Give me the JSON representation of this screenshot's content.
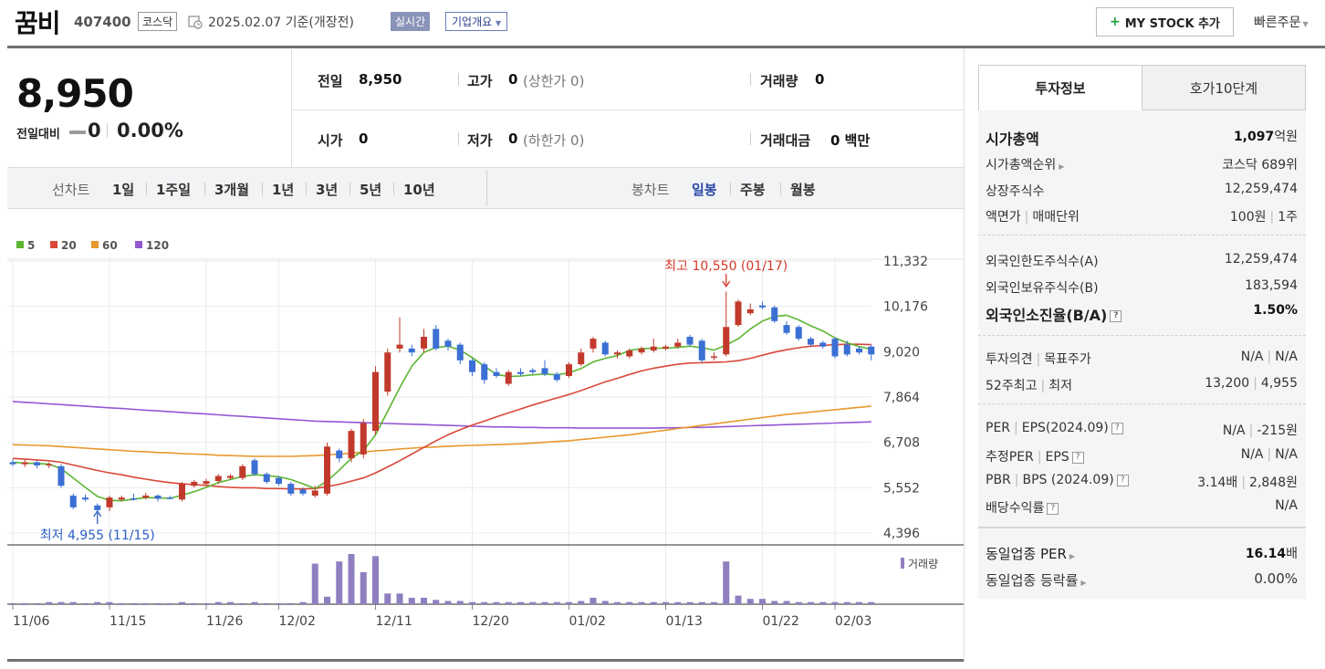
{
  "header": {
    "name": "꿈비",
    "code": "407400",
    "market": "코스닥",
    "date": "2025.02.07 기준(개장전)",
    "realtime": "실시간",
    "company_overview": "기업개요",
    "mystock_label": "MY STOCK 추가",
    "quick_order": "빠른주문"
  },
  "price": {
    "current": "8,950",
    "change_label": "전일대비",
    "change": "0",
    "change_rate": "0.00%"
  },
  "stats": {
    "prev_label": "전일",
    "prev_value": "8,950",
    "high_label": "고가",
    "high_value": "0",
    "upper_limit": "(상한가 0)",
    "volume_label": "거래량",
    "volume_value": "0",
    "open_label": "시가",
    "open_value": "0",
    "low_label": "저가",
    "low_value": "0",
    "lower_limit": "(하한가 0)",
    "amount_label": "거래대금",
    "amount_value": "0 백만"
  },
  "periods": {
    "line_label": "선차트",
    "line_items": [
      "1일",
      "1주일",
      "3개월",
      "1년",
      "3년",
      "5년",
      "10년"
    ],
    "candle_label": "봉차트",
    "candle_items": [
      "일봉",
      "주봉",
      "월봉"
    ],
    "active_candle": "일봉"
  },
  "chart_data": {
    "type": "candlestick",
    "legend": [
      "5",
      "20",
      "60",
      "120"
    ],
    "legend_colors": [
      "#5cb531",
      "#d9483b",
      "#e8972d",
      "#9457d3"
    ],
    "up_color": "#c1392b",
    "down_color": "#3b6fd4",
    "y_ticks": [
      "11,332",
      "10,176",
      "9,020",
      "7,864",
      "6,708",
      "5,552",
      "4,396"
    ],
    "ylim": [
      4396,
      11332
    ],
    "x_labels": [
      "11/06",
      "11/15",
      "11/26",
      "12/02",
      "12/11",
      "12/20",
      "01/02",
      "01/13",
      "01/22",
      "02/03"
    ],
    "high_annotation": "최고 10,550 (01/17)",
    "low_annotation": "최저 4,955 (11/15)",
    "volume_label": "거래량",
    "volume_color": "#8f7fc0",
    "candles": [
      [
        6200,
        6150,
        6280,
        6100
      ],
      [
        6150,
        6200,
        6260,
        6080
      ],
      [
        6200,
        6120,
        6250,
        6050
      ],
      [
        6120,
        6150,
        6200,
        6050
      ],
      [
        6100,
        5600,
        6150,
        5550
      ],
      [
        5350,
        5050,
        5400,
        5000
      ],
      [
        5300,
        5250,
        5380,
        5200
      ],
      [
        5100,
        4980,
        5150,
        4955
      ],
      [
        5050,
        5300,
        5350,
        4955
      ],
      [
        5250,
        5300,
        5350,
        5200
      ],
      [
        5280,
        5250,
        5400,
        5220
      ],
      [
        5300,
        5350,
        5420,
        5250
      ],
      [
        5350,
        5270,
        5380,
        5200
      ],
      [
        5300,
        5280,
        5350,
        5250
      ],
      [
        5250,
        5650,
        5700,
        5200
      ],
      [
        5600,
        5700,
        5750,
        5550
      ],
      [
        5650,
        5720,
        5780,
        5600
      ],
      [
        5720,
        5850,
        5900,
        5650
      ],
      [
        5800,
        5850,
        5900,
        5750
      ],
      [
        5800,
        6100,
        6150,
        5750
      ],
      [
        6250,
        5900,
        6300,
        5850
      ],
      [
        5900,
        5700,
        5950,
        5650
      ],
      [
        5800,
        5650,
        5850,
        5600
      ],
      [
        5650,
        5400,
        5700,
        5350
      ],
      [
        5500,
        5400,
        5550,
        5350
      ],
      [
        5350,
        5480,
        5600,
        5300
      ],
      [
        5400,
        6600,
        6700,
        5350
      ],
      [
        6500,
        6300,
        6550,
        6200
      ],
      [
        6300,
        7000,
        7050,
        6200
      ],
      [
        6400,
        7200,
        7300,
        6300
      ],
      [
        7000,
        8500,
        8650,
        6900
      ],
      [
        8000,
        9000,
        9100,
        7900
      ],
      [
        9100,
        9200,
        9900,
        9000
      ],
      [
        9100,
        9000,
        9200,
        8900
      ],
      [
        9100,
        9400,
        9600,
        9000
      ],
      [
        9600,
        9100,
        9700,
        9050
      ],
      [
        9300,
        9150,
        9350,
        9050
      ],
      [
        9200,
        8800,
        9250,
        8700
      ],
      [
        8800,
        8500,
        8850,
        8400
      ],
      [
        8700,
        8300,
        8750,
        8200
      ],
      [
        8500,
        8400,
        8600,
        8350
      ],
      [
        8200,
        8500,
        8550,
        8150
      ],
      [
        8500,
        8450,
        8600,
        8400
      ],
      [
        8550,
        8500,
        8600,
        8450
      ],
      [
        8600,
        8450,
        8800,
        8400
      ],
      [
        8450,
        8300,
        8500,
        8250
      ],
      [
        8400,
        8700,
        8750,
        8350
      ],
      [
        8700,
        9000,
        9100,
        8650
      ],
      [
        9100,
        9350,
        9400,
        9000
      ],
      [
        9250,
        8950,
        9300,
        8900
      ],
      [
        8950,
        9000,
        9050,
        8850
      ],
      [
        8900,
        9050,
        9100,
        8850
      ],
      [
        9000,
        9100,
        9150,
        8950
      ],
      [
        9050,
        9150,
        9350,
        9000
      ],
      [
        9100,
        9150,
        9200,
        9050
      ],
      [
        9150,
        9250,
        9350,
        9100
      ],
      [
        9400,
        9200,
        9450,
        9150
      ],
      [
        9300,
        8800,
        9350,
        8750
      ],
      [
        8900,
        8900,
        9000,
        8800
      ],
      [
        8950,
        9650,
        10550,
        8900
      ],
      [
        9700,
        10300,
        10350,
        9650
      ],
      [
        10000,
        10100,
        10250,
        9950
      ],
      [
        10200,
        10150,
        10300,
        10100
      ],
      [
        10150,
        9800,
        10200,
        9750
      ],
      [
        9700,
        9500,
        9800,
        9450
      ],
      [
        9650,
        9350,
        9700,
        9300
      ],
      [
        9350,
        9200,
        9400,
        9150
      ],
      [
        9250,
        9150,
        9300,
        9100
      ],
      [
        9350,
        8900,
        9400,
        8850
      ],
      [
        9200,
        8950,
        9300,
        8900
      ],
      [
        9100,
        9000,
        9150,
        8950
      ],
      [
        9150,
        8950,
        9200,
        8800
      ]
    ],
    "volume": [
      1,
      1,
      1,
      2,
      2,
      2,
      1,
      2,
      2,
      1,
      1,
      1,
      1,
      1,
      2,
      1,
      1,
      2,
      2,
      1,
      2,
      1,
      1,
      1,
      2,
      38,
      7,
      40,
      47,
      30,
      45,
      10,
      10,
      6,
      6,
      4,
      3,
      3,
      2,
      2,
      2,
      2,
      2,
      2,
      2,
      2,
      2,
      3,
      6,
      3,
      2,
      2,
      2,
      2,
      2,
      2,
      2,
      2,
      2,
      40,
      8,
      5,
      5,
      3,
      3,
      2,
      2,
      2,
      2,
      2,
      2,
      2
    ],
    "ma5": [
      6200,
      6180,
      6170,
      6150,
      6040,
      5800,
      5560,
      5330,
      5230,
      5220,
      5260,
      5300,
      5290,
      5280,
      5360,
      5450,
      5560,
      5680,
      5760,
      5840,
      5880,
      5860,
      5830,
      5760,
      5650,
      5530,
      5720,
      6000,
      6300,
      6500,
      6900,
      7500,
      8100,
      8650,
      9000,
      9130,
      9160,
      9060,
      8870,
      8650,
      8440,
      8390,
      8400,
      8430,
      8450,
      8430,
      8480,
      8590,
      8760,
      8850,
      8920,
      9050,
      9100,
      9110,
      9110,
      9130,
      9160,
      9120,
      9060,
      9190,
      9350,
      9600,
      9800,
      9920,
      9950,
      9830,
      9680,
      9550,
      9370,
      9250,
      9150,
      9080
    ],
    "ma20": [
      6300,
      6280,
      6260,
      6240,
      6200,
      6130,
      6060,
      5990,
      5930,
      5880,
      5820,
      5770,
      5720,
      5680,
      5650,
      5630,
      5610,
      5580,
      5560,
      5550,
      5550,
      5530,
      5530,
      5520,
      5520,
      5530,
      5580,
      5640,
      5720,
      5800,
      5930,
      6080,
      6240,
      6410,
      6580,
      6750,
      6900,
      7030,
      7150,
      7250,
      7360,
      7460,
      7560,
      7660,
      7750,
      7840,
      7930,
      8030,
      8140,
      8250,
      8340,
      8440,
      8530,
      8600,
      8650,
      8700,
      8730,
      8740,
      8750,
      8760,
      8790,
      8850,
      8930,
      9010,
      9070,
      9120,
      9160,
      9180,
      9200,
      9210,
      9210,
      9200
    ],
    "ma60": [
      6650,
      6640,
      6630,
      6620,
      6600,
      6580,
      6560,
      6540,
      6520,
      6500,
      6480,
      6470,
      6450,
      6440,
      6420,
      6410,
      6400,
      6380,
      6370,
      6360,
      6350,
      6350,
      6350,
      6350,
      6360,
      6370,
      6390,
      6410,
      6430,
      6460,
      6490,
      6510,
      6540,
      6560,
      6580,
      6590,
      6610,
      6620,
      6630,
      6640,
      6650,
      6660,
      6670,
      6690,
      6710,
      6730,
      6750,
      6780,
      6810,
      6840,
      6870,
      6900,
      6940,
      6980,
      7020,
      7060,
      7100,
      7140,
      7180,
      7220,
      7260,
      7300,
      7340,
      7380,
      7420,
      7450,
      7480,
      7510,
      7540,
      7570,
      7600,
      7630
    ],
    "ma120": [
      7750,
      7730,
      7710,
      7690,
      7670,
      7650,
      7630,
      7610,
      7590,
      7570,
      7550,
      7530,
      7510,
      7490,
      7470,
      7450,
      7430,
      7410,
      7390,
      7370,
      7350,
      7330,
      7310,
      7290,
      7270,
      7250,
      7240,
      7230,
      7220,
      7210,
      7200,
      7190,
      7180,
      7170,
      7160,
      7150,
      7140,
      7130,
      7120,
      7110,
      7100,
      7100,
      7090,
      7090,
      7080,
      7080,
      7080,
      7070,
      7070,
      7070,
      7070,
      7070,
      7070,
      7070,
      7080,
      7080,
      7090,
      7090,
      7100,
      7110,
      7120,
      7130,
      7140,
      7150,
      7160,
      7170,
      7180,
      7190,
      7200,
      7210,
      7220,
      7230
    ]
  },
  "tabs": {
    "invest": "투자정보",
    "orderbook": "호가10단계"
  },
  "invest": {
    "market_cap_label": "시가총액",
    "market_cap_value": "1,097",
    "market_cap_unit": "억원",
    "rank_label": "시가총액순위",
    "rank_value": "코스닥 689위",
    "shares_label": "상장주식수",
    "shares_value": "12,259,474",
    "par_label": "액면가",
    "unit_label": "매매단위",
    "par_value": "100원",
    "unit_value": "1주",
    "foreign_limit_label": "외국인한도주식수(A)",
    "foreign_limit_value": "12,259,474",
    "foreign_hold_label": "외국인보유주식수(B)",
    "foreign_hold_value": "183,594",
    "foreign_ratio_label": "외국인소진율(B/A)",
    "foreign_ratio_value": "1.50%",
    "opinion_label": "투자의견",
    "target_label": "목표주가",
    "opinion_value": "N/A",
    "target_value": "N/A",
    "w52_high_label": "52주최고",
    "w52_low_label": "최저",
    "w52_high_value": "13,200",
    "w52_low_value": "4,955",
    "per_label": "PER",
    "eps_label": "EPS(2024.09)",
    "per_value": "N/A",
    "eps_value": "-215원",
    "est_per_label": "추정PER",
    "est_eps_label": "EPS",
    "est_per_value": "N/A",
    "est_eps_value": "N/A",
    "pbr_label": "PBR",
    "bps_label": "BPS (2024.09)",
    "pbr_value": "3.14배",
    "bps_value": "2,848원",
    "dividend_label": "배당수익률",
    "dividend_value": "N/A",
    "sector_per_label": "동일업종 PER",
    "sector_per_value": "16.14",
    "sector_per_unit": "배",
    "sector_change_label": "동일업종 등락률",
    "sector_change_value": "0.00%"
  }
}
